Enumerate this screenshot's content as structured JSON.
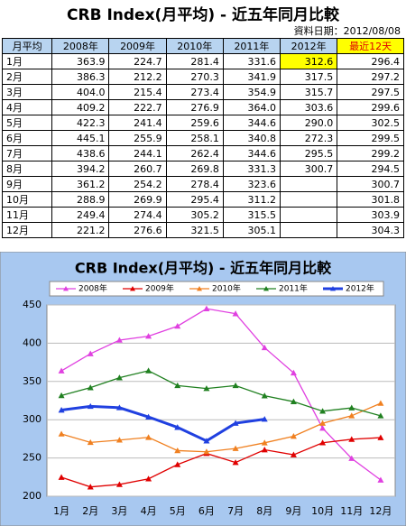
{
  "header": {
    "title": "CRB Index(月平均) - 近五年同月比較",
    "date": "資料日期：2012/08/08"
  },
  "table": {
    "columns": [
      "月平均",
      "2008年",
      "2009年",
      "2010年",
      "2011年",
      "2012年",
      "最近12天"
    ],
    "rows": [
      [
        "1月",
        "363.9",
        "224.7",
        "281.4",
        "331.6",
        "312.6",
        "296.4"
      ],
      [
        "2月",
        "386.3",
        "212.2",
        "270.3",
        "341.9",
        "317.5",
        "297.2"
      ],
      [
        "3月",
        "404.0",
        "215.4",
        "273.4",
        "354.9",
        "315.7",
        "297.5"
      ],
      [
        "4月",
        "409.2",
        "222.7",
        "276.9",
        "364.0",
        "303.6",
        "299.6"
      ],
      [
        "5月",
        "422.3",
        "241.4",
        "259.6",
        "344.6",
        "290.0",
        "302.5"
      ],
      [
        "6月",
        "445.1",
        "255.9",
        "258.1",
        "340.8",
        "272.3",
        "299.5"
      ],
      [
        "7月",
        "438.6",
        "244.1",
        "262.4",
        "344.6",
        "295.5",
        "299.2"
      ],
      [
        "8月",
        "394.2",
        "260.7",
        "269.8",
        "331.3",
        "300.7",
        "294.5"
      ],
      [
        "9月",
        "361.2",
        "254.2",
        "278.4",
        "323.6",
        null,
        "300.7"
      ],
      [
        "10月",
        "288.9",
        "269.9",
        "295.4",
        "311.2",
        null,
        "301.8"
      ],
      [
        "11月",
        "249.4",
        "274.4",
        "305.2",
        "315.5",
        null,
        "303.9"
      ],
      [
        "12月",
        "221.2",
        "276.6",
        "321.5",
        "305.1",
        null,
        "304.3"
      ]
    ]
  },
  "chart_data": {
    "type": "line",
    "title": "CRB Index(月平均) - 近五年同月比較",
    "categories": [
      "1月",
      "2月",
      "3月",
      "4月",
      "5月",
      "6月",
      "7月",
      "8月",
      "9月",
      "10月",
      "11月",
      "12月"
    ],
    "ylim": [
      200,
      450
    ],
    "yticks": [
      200,
      250,
      300,
      350,
      400,
      450
    ],
    "grid": true,
    "series": [
      {
        "name": "2008年",
        "color": "#e040e0",
        "values": [
          363.9,
          386.3,
          404.0,
          409.2,
          422.3,
          445.1,
          438.6,
          394.2,
          361.2,
          288.9,
          249.4,
          221.2
        ]
      },
      {
        "name": "2009年",
        "color": "#e00000",
        "values": [
          224.7,
          212.2,
          215.4,
          222.7,
          241.4,
          255.9,
          244.1,
          260.7,
          254.2,
          269.9,
          274.4,
          276.6
        ]
      },
      {
        "name": "2010年",
        "color": "#f08020",
        "values": [
          281.4,
          270.3,
          273.4,
          276.9,
          259.6,
          258.1,
          262.4,
          269.8,
          278.4,
          295.4,
          305.2,
          321.5
        ]
      },
      {
        "name": "2011年",
        "color": "#208020",
        "values": [
          331.6,
          341.9,
          354.9,
          364.0,
          344.6,
          340.8,
          344.6,
          331.3,
          323.6,
          311.2,
          315.5,
          305.1
        ]
      },
      {
        "name": "2012年",
        "color": "#2040e0",
        "values": [
          312.6,
          317.5,
          315.7,
          303.6,
          290.0,
          272.3,
          295.5,
          300.7,
          null,
          null,
          null,
          null
        ]
      }
    ]
  }
}
